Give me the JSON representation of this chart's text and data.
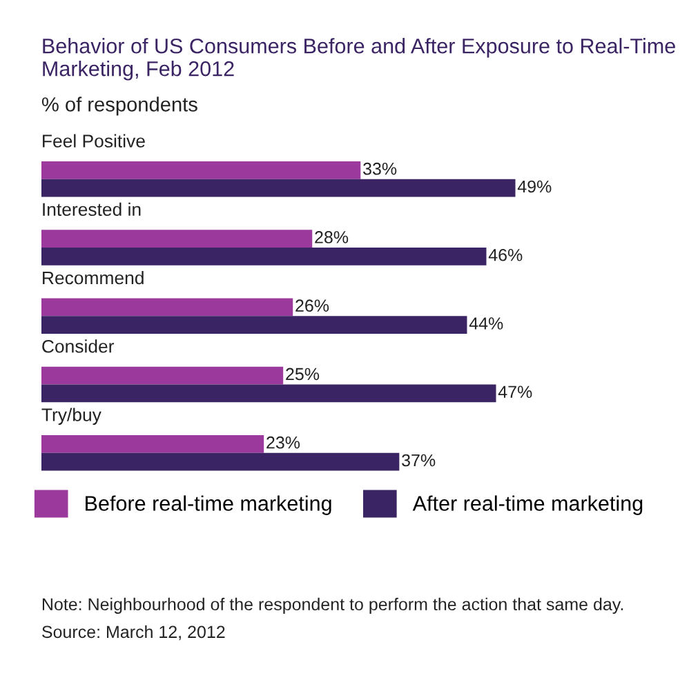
{
  "chart_data": {
    "type": "bar",
    "orientation": "horizontal",
    "title": "Behavior of US Consumers Before and After Exposure to Real-Time Marketing, Feb 2012",
    "subtitle": "% of respondents",
    "categories": [
      "Feel Positive",
      "Interested in",
      "Recommend",
      "Consider",
      "Try/buy"
    ],
    "series": [
      {
        "name": "Before real-time marketing",
        "color": "#9b3a9c",
        "values": [
          33,
          28,
          26,
          25,
          23
        ],
        "value_labels": [
          "33%",
          "28%",
          "26%",
          "25%",
          "23%"
        ]
      },
      {
        "name": "After real-time marketing",
        "color": "#3a2463",
        "values": [
          49,
          46,
          44,
          47,
          37
        ],
        "value_labels": [
          "49%",
          "46%",
          "44%",
          "47%",
          "37%"
        ]
      }
    ],
    "legend": "bottom",
    "tick_labels": false,
    "annotations": [
      "Note: Neighbourhood of the respondent to perform the action that same day.",
      "Source: March 12, 2012"
    ]
  }
}
